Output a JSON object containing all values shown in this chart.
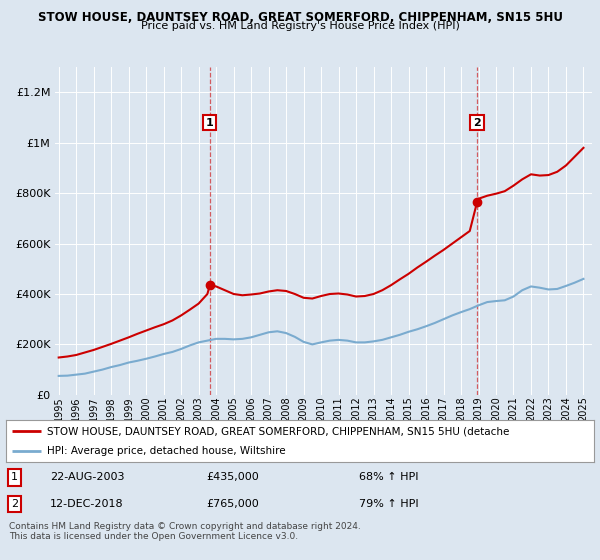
{
  "title_line1": "STOW HOUSE, DAUNTSEY ROAD, GREAT SOMERFORD, CHIPPENHAM, SN15 5HU",
  "title_line2": "Price paid vs. HM Land Registry's House Price Index (HPI)",
  "background_color": "#dce6f0",
  "ylim": [
    0,
    1300000
  ],
  "yticks": [
    0,
    200000,
    400000,
    600000,
    800000,
    1000000,
    1200000
  ],
  "ytick_labels": [
    "£0",
    "£200K",
    "£400K",
    "£600K",
    "£800K",
    "£1M",
    "£1.2M"
  ],
  "sale1_year": 2003.64,
  "sale1_value": 435000,
  "sale1_label": "1",
  "sale2_year": 2018.92,
  "sale2_value": 765000,
  "sale2_label": "2",
  "legend_line1": "STOW HOUSE, DAUNTSEY ROAD, GREAT SOMERFORD, CHIPPENHAM, SN15 5HU (detache",
  "legend_line2": "HPI: Average price, detached house, Wiltshire",
  "annotation1_date": "22-AUG-2003",
  "annotation1_price": "£435,000",
  "annotation1_hpi": "68% ↑ HPI",
  "annotation2_date": "12-DEC-2018",
  "annotation2_price": "£765,000",
  "annotation2_hpi": "79% ↑ HPI",
  "footer": "Contains HM Land Registry data © Crown copyright and database right 2024.\nThis data is licensed under the Open Government Licence v3.0.",
  "red_line_color": "#cc0000",
  "blue_line_color": "#7aabcf",
  "hpi_years": [
    1995.0,
    1995.5,
    1996.0,
    1996.5,
    1997.0,
    1997.5,
    1998.0,
    1998.5,
    1999.0,
    1999.5,
    2000.0,
    2000.5,
    2001.0,
    2001.5,
    2002.0,
    2002.5,
    2003.0,
    2003.5,
    2004.0,
    2004.5,
    2005.0,
    2005.5,
    2006.0,
    2006.5,
    2007.0,
    2007.5,
    2008.0,
    2008.5,
    2009.0,
    2009.5,
    2010.0,
    2010.5,
    2011.0,
    2011.5,
    2012.0,
    2012.5,
    2013.0,
    2013.5,
    2014.0,
    2014.5,
    2015.0,
    2015.5,
    2016.0,
    2016.5,
    2017.0,
    2017.5,
    2018.0,
    2018.5,
    2019.0,
    2019.5,
    2020.0,
    2020.5,
    2021.0,
    2021.5,
    2022.0,
    2022.5,
    2023.0,
    2023.5,
    2024.0,
    2024.5,
    2025.0
  ],
  "hpi_values": [
    75000,
    76000,
    80000,
    84000,
    92000,
    100000,
    110000,
    118000,
    128000,
    135000,
    143000,
    152000,
    162000,
    170000,
    182000,
    196000,
    208000,
    215000,
    222000,
    222000,
    220000,
    222000,
    228000,
    238000,
    248000,
    252000,
    245000,
    230000,
    210000,
    200000,
    208000,
    215000,
    218000,
    215000,
    208000,
    208000,
    212000,
    218000,
    228000,
    238000,
    250000,
    260000,
    272000,
    285000,
    300000,
    315000,
    328000,
    340000,
    355000,
    368000,
    372000,
    375000,
    390000,
    415000,
    430000,
    425000,
    418000,
    420000,
    432000,
    445000,
    460000
  ],
  "price_years": [
    1995.0,
    1995.5,
    1996.0,
    1996.5,
    1997.0,
    1997.5,
    1998.0,
    1998.5,
    1999.0,
    1999.5,
    2000.0,
    2000.5,
    2001.0,
    2001.5,
    2002.0,
    2002.5,
    2003.0,
    2003.5,
    2003.64,
    2004.0,
    2004.5,
    2005.0,
    2005.5,
    2006.0,
    2006.5,
    2007.0,
    2007.5,
    2008.0,
    2008.5,
    2009.0,
    2009.5,
    2010.0,
    2010.5,
    2011.0,
    2011.5,
    2012.0,
    2012.5,
    2013.0,
    2013.5,
    2014.0,
    2014.5,
    2015.0,
    2015.5,
    2016.0,
    2016.5,
    2017.0,
    2017.5,
    2018.0,
    2018.5,
    2018.92,
    2019.0,
    2019.5,
    2020.0,
    2020.5,
    2021.0,
    2021.5,
    2022.0,
    2022.5,
    2023.0,
    2023.5,
    2024.0,
    2024.5,
    2025.0
  ],
  "price_values": [
    148000,
    152000,
    158000,
    168000,
    178000,
    190000,
    202000,
    215000,
    228000,
    242000,
    255000,
    268000,
    280000,
    295000,
    315000,
    338000,
    362000,
    400000,
    435000,
    430000,
    415000,
    400000,
    395000,
    398000,
    402000,
    410000,
    415000,
    412000,
    400000,
    385000,
    382000,
    392000,
    400000,
    402000,
    398000,
    390000,
    392000,
    400000,
    415000,
    435000,
    458000,
    480000,
    505000,
    528000,
    552000,
    575000,
    600000,
    625000,
    650000,
    765000,
    778000,
    790000,
    798000,
    808000,
    830000,
    855000,
    875000,
    870000,
    872000,
    885000,
    910000,
    945000,
    980000
  ]
}
